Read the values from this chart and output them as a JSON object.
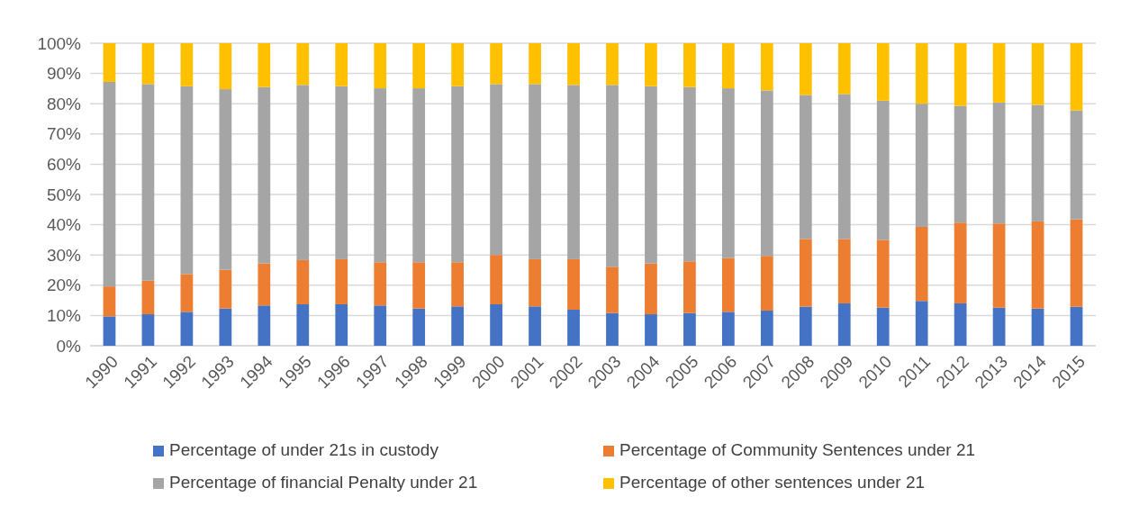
{
  "chart_data": {
    "type": "bar",
    "stacked": true,
    "categories": [
      "1990",
      "1991",
      "1992",
      "1993",
      "1994",
      "1995",
      "1996",
      "1997",
      "1998",
      "1999",
      "2000",
      "2001",
      "2002",
      "2003",
      "2004",
      "2005",
      "2006",
      "2007",
      "2008",
      "2009",
      "2010",
      "2011",
      "2012",
      "2013",
      "2014",
      "2015"
    ],
    "series": [
      {
        "name": "Percentage of under 21s in custody",
        "color": "#4472c4",
        "values": [
          9.7,
          10.4,
          11.2,
          12.3,
          13.3,
          13.7,
          13.7,
          13.3,
          12.3,
          13.0,
          13.7,
          13.0,
          11.9,
          10.8,
          10.4,
          10.8,
          11.2,
          11.6,
          12.9,
          14.0,
          12.6,
          14.8,
          14.0,
          12.6,
          12.3,
          12.9
        ]
      },
      {
        "name": "Percentage of Community Sentences under 21",
        "color": "#ed7d31",
        "values": [
          9.9,
          11.1,
          12.5,
          12.8,
          13.9,
          14.6,
          14.9,
          14.3,
          15.3,
          14.6,
          16.3,
          15.6,
          16.7,
          15.3,
          16.8,
          17.1,
          17.8,
          18.1,
          22.4,
          21.3,
          22.4,
          24.5,
          26.7,
          27.8,
          28.8,
          28.9
        ]
      },
      {
        "name": "Percentage of financial Penalty under 21",
        "color": "#a5a5a5",
        "values": [
          67.6,
          65.0,
          62.1,
          59.7,
          58.3,
          57.9,
          57.2,
          57.5,
          57.5,
          58.2,
          56.5,
          57.9,
          57.6,
          60.1,
          58.6,
          57.6,
          56.1,
          54.7,
          47.6,
          47.9,
          46.0,
          40.7,
          38.6,
          40.0,
          38.5,
          36.0
        ]
      },
      {
        "name": "Percentage of other sentences under 21",
        "color": "#ffc000",
        "values": [
          12.8,
          13.5,
          14.2,
          15.2,
          14.5,
          13.8,
          14.2,
          14.9,
          14.9,
          14.2,
          13.5,
          13.5,
          13.8,
          13.8,
          14.2,
          14.5,
          14.9,
          15.6,
          17.1,
          16.8,
          19.0,
          20.0,
          20.7,
          19.6,
          20.4,
          22.2
        ]
      }
    ],
    "ylim": [
      0,
      100
    ],
    "yticks": [
      {
        "value": 0,
        "label": "0%"
      },
      {
        "value": 10,
        "label": "10%"
      },
      {
        "value": 20,
        "label": "20%"
      },
      {
        "value": 30,
        "label": "30%"
      },
      {
        "value": 40,
        "label": "40%"
      },
      {
        "value": 50,
        "label": "50%"
      },
      {
        "value": 60,
        "label": "60%"
      },
      {
        "value": 70,
        "label": "70%"
      },
      {
        "value": 80,
        "label": "80%"
      },
      {
        "value": 90,
        "label": "90%"
      },
      {
        "value": 100,
        "label": "100%"
      }
    ],
    "grid": "y",
    "legend": "bottom"
  }
}
